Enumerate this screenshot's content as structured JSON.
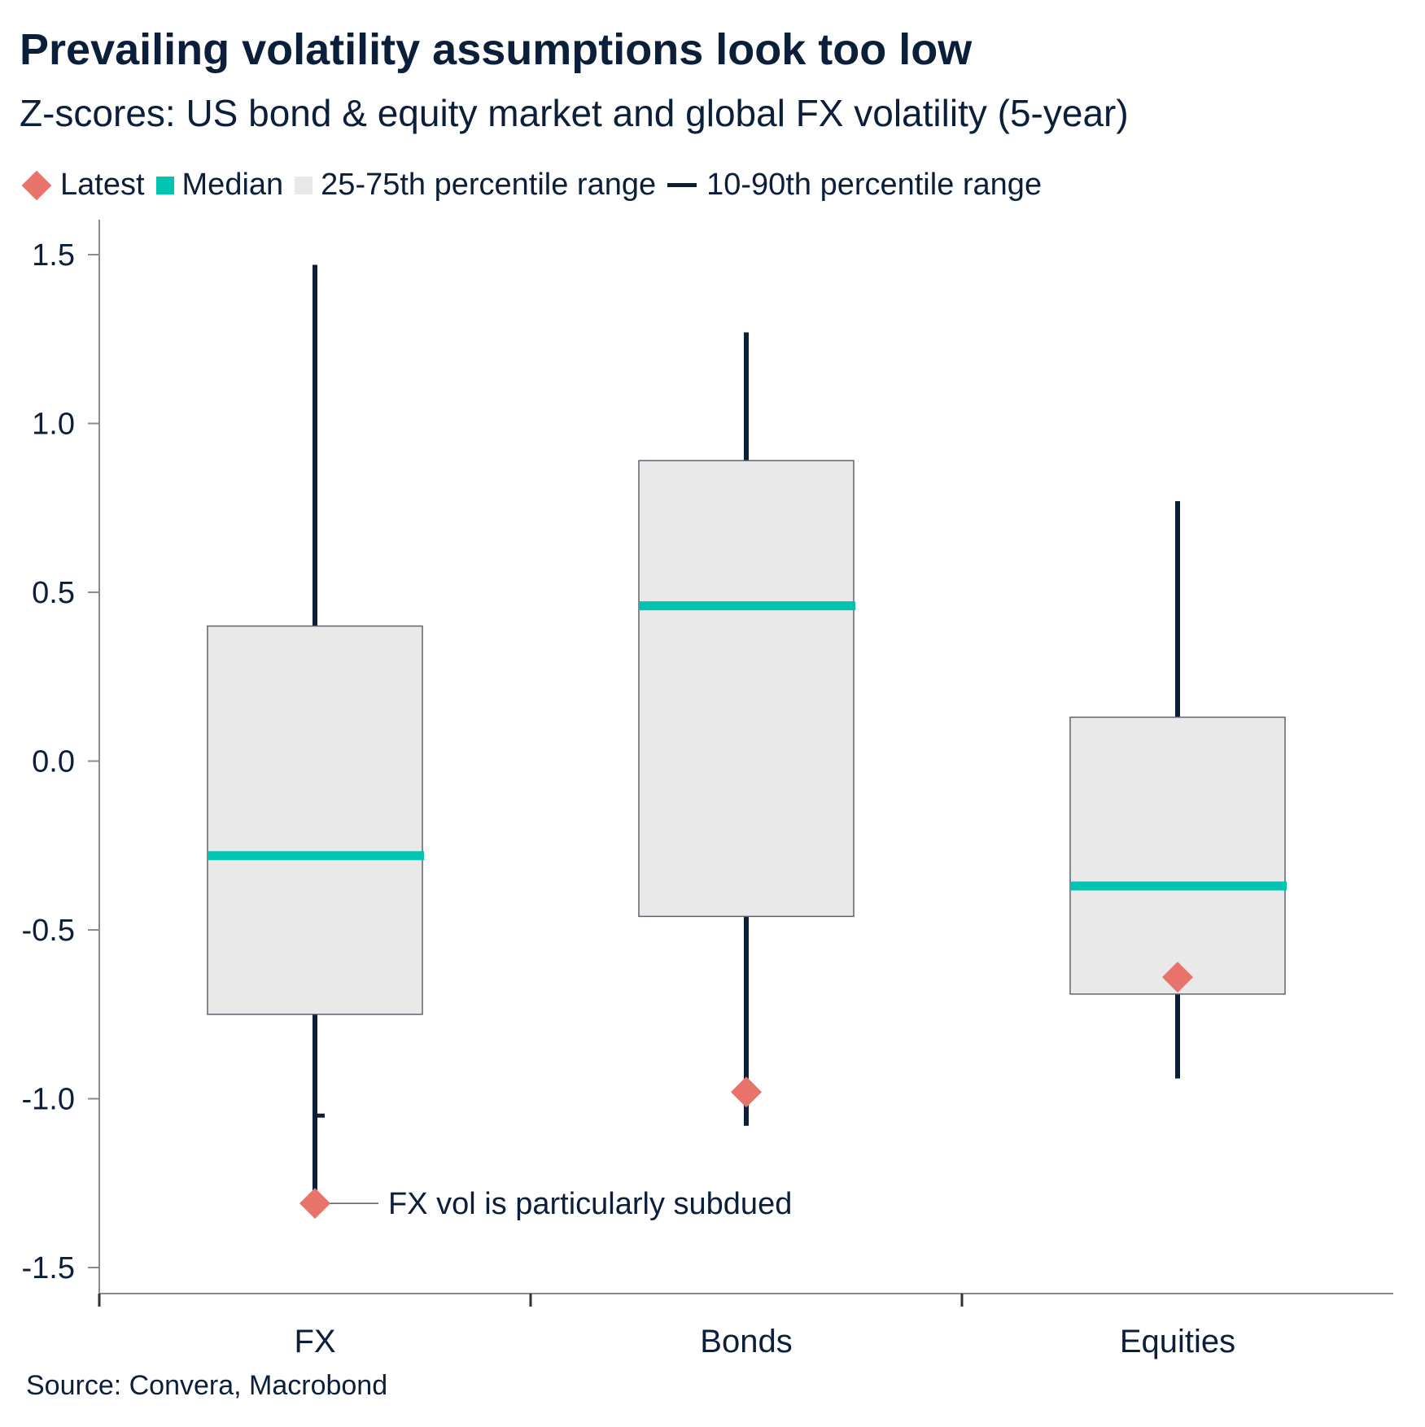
{
  "title": "Prevailing volatility assumptions look too low",
  "subtitle": "Z-scores: US bond & equity market and global FX volatility (5-year)",
  "legend": {
    "latest": "Latest",
    "median": "Median",
    "iqr": "25-75th percentile range",
    "range": "10-90th percentile range"
  },
  "colors": {
    "latest": "#e8736a",
    "median": "#00c4b0",
    "box_fill": "#e9e9e9",
    "box_stroke": "#5c6470",
    "whisker": "#0b1f3a",
    "text": "#0b1f3a",
    "axis": "#8c8c8c"
  },
  "source": "Source: Convera, Macrobond",
  "chart_data": {
    "type": "box",
    "title": "Prevailing volatility assumptions look too low",
    "subtitle": "Z-scores: US bond & equity market and global FX volatility (5-year)",
    "categories": [
      "FX",
      "Bonds",
      "Equities"
    ],
    "p10": [
      -1.33,
      -1.08,
      -0.94
    ],
    "p25": [
      -0.75,
      -0.46,
      -0.69
    ],
    "median": [
      -0.28,
      0.46,
      -0.37
    ],
    "p75": [
      0.4,
      0.89,
      0.13
    ],
    "p90": [
      1.47,
      1.27,
      0.77
    ],
    "latest": [
      -1.31,
      -0.98,
      -0.64
    ],
    "ylim": [
      -1.5,
      1.5
    ],
    "yticks": [
      1.5,
      1.0,
      0.5,
      0.0,
      -0.5,
      -1.0,
      -1.5
    ],
    "ytick_labels": [
      "1.5",
      "1.0",
      "0.5",
      "0.0",
      "-0.5",
      "-1.0",
      "-1.5"
    ],
    "annotations": [
      {
        "category": "FX",
        "value": -1.31,
        "text": "FX vol is particularly subdued"
      }
    ],
    "fx_extra_tick": -1.05,
    "grid": false,
    "legend_position": "top-left"
  }
}
